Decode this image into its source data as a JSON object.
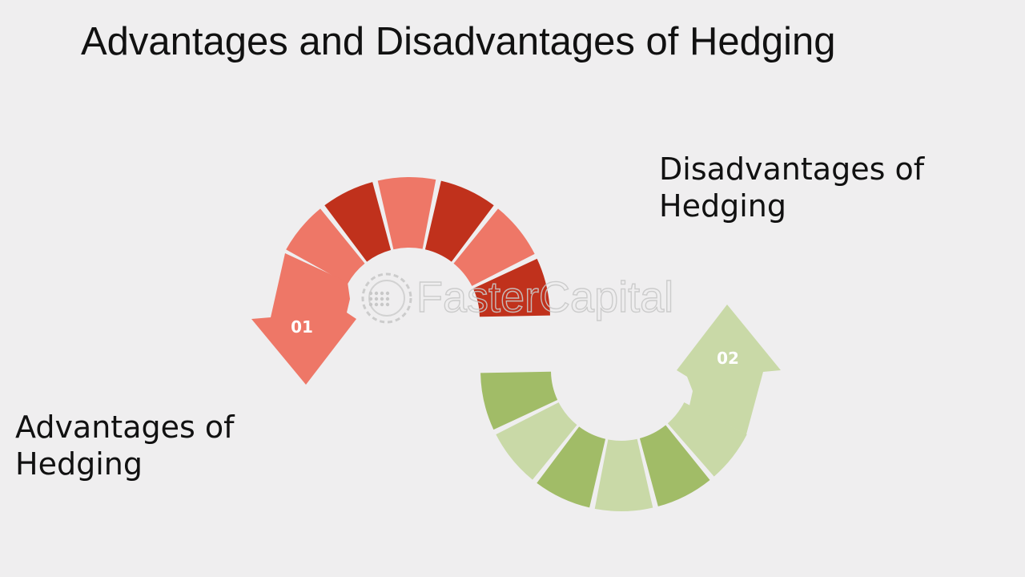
{
  "title": "Advantages and Disadvantages of Hedging",
  "steps": [
    {
      "number": "01",
      "label": "Advantages of Hedging",
      "label_lines": [
        "Advantages of",
        "Hedging"
      ],
      "color_dark": "#c0311c",
      "color_light": "#ee7767",
      "position": "bottom-left"
    },
    {
      "number": "02",
      "label": "Disadvantages of Hedging",
      "label_lines": [
        "Disadvantages of",
        "Hedging"
      ],
      "color_dark": "#a1bc67",
      "color_light": "#c9d9a7",
      "position": "top-right"
    }
  ],
  "watermark": {
    "text": "FasterCapital",
    "icon": "gear-icon"
  },
  "colors": {
    "background": "#efeeef",
    "red_dark": "#c0311c",
    "red_light": "#ee7767",
    "green_dark": "#a1bc67",
    "green_light": "#c9d9a7"
  }
}
